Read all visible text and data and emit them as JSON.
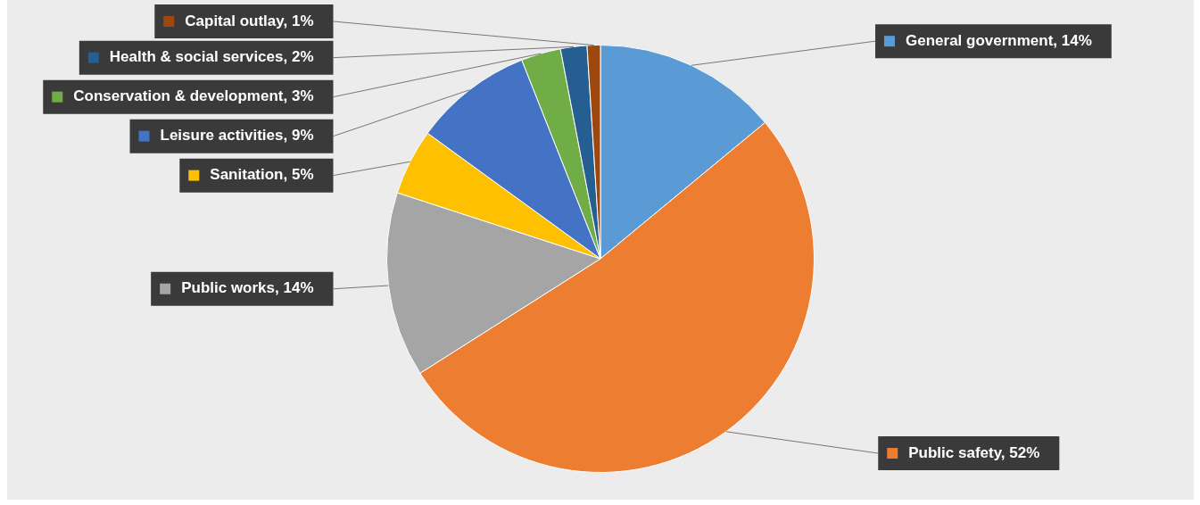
{
  "chart_data": {
    "type": "pie",
    "categories": [
      "General government",
      "Public safety",
      "Public works",
      "Sanitation",
      "Leisure activities",
      "Conservation & development",
      "Health & social services",
      "Capital outlay"
    ],
    "values": [
      14,
      52,
      14,
      5,
      9,
      3,
      2,
      1
    ],
    "value_labels": [
      "14%",
      "52%",
      "14%",
      "5%",
      "9%",
      "3%",
      "2%",
      "1%"
    ],
    "colors": [
      "#5b9bd5",
      "#ed7d31",
      "#a5a5a5",
      "#ffc000",
      "#4472c4",
      "#70ad47",
      "#255e91",
      "#9e480e"
    ],
    "legend": "left"
  }
}
